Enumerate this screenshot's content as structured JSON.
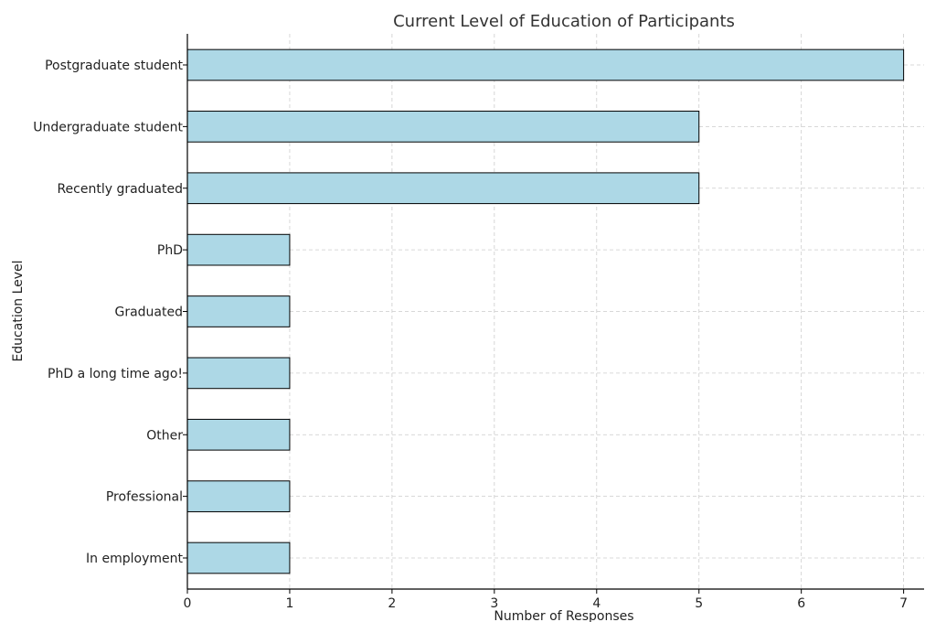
{
  "chart_data": {
    "type": "bar",
    "orientation": "horizontal",
    "title": "Current Level of Education of Participants",
    "xlabel": "Number of Responses",
    "ylabel": "Education Level",
    "categories": [
      "Postgraduate student",
      "Undergraduate student",
      "Recently graduated",
      "PhD",
      "Graduated",
      "PhD a long time ago!",
      "Other",
      "Professional",
      "In employment"
    ],
    "values": [
      7,
      5,
      5,
      1,
      1,
      1,
      1,
      1,
      1
    ],
    "xlim": [
      0,
      7.2
    ],
    "xticks": [
      "0",
      "1",
      "2",
      "3",
      "4",
      "5",
      "6",
      "7"
    ],
    "grid": true,
    "bar_color": "#add8e6",
    "edge_color": "#000000"
  }
}
